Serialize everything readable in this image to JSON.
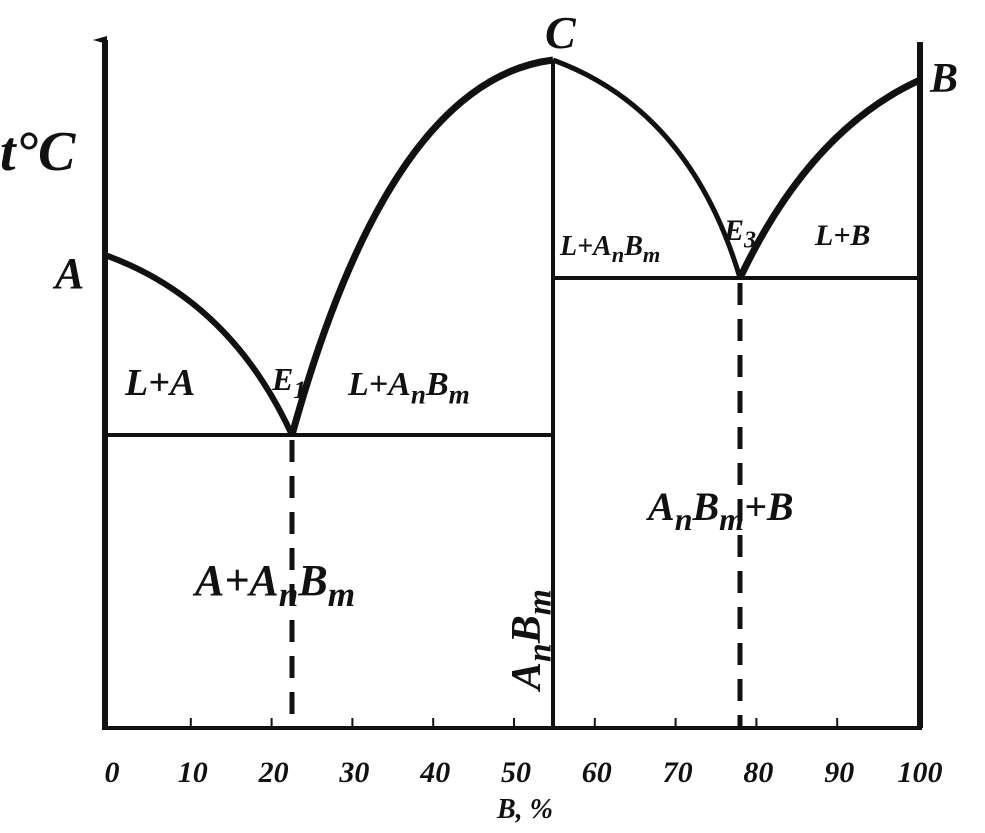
{
  "axis": {
    "y_label": "t°C",
    "x_label": "B, %",
    "x_ticks": [
      "0",
      "10",
      "20",
      "30",
      "40",
      "50",
      "60",
      "70",
      "80",
      "90",
      "100"
    ]
  },
  "points": [
    {
      "parts": [
        {
          "t": "A"
        }
      ]
    },
    {
      "parts": [
        {
          "t": "C"
        }
      ]
    },
    {
      "parts": [
        {
          "t": "B"
        }
      ]
    },
    {
      "parts": [
        {
          "t": "E"
        },
        {
          "t": "1",
          "sub": true
        }
      ]
    },
    {
      "parts": [
        {
          "t": "E"
        },
        {
          "t": "3",
          "sub": true
        }
      ]
    }
  ],
  "regions": [
    {
      "parts": [
        {
          "t": "L+A"
        }
      ]
    },
    {
      "parts": [
        {
          "t": "L+A"
        },
        {
          "t": "n",
          "sub": true
        },
        {
          "t": "B"
        },
        {
          "t": "m",
          "sub": true
        }
      ]
    },
    {
      "parts": [
        {
          "t": "L+A"
        },
        {
          "t": "n",
          "sub": true
        },
        {
          "t": "B"
        },
        {
          "t": "m",
          "sub": true
        }
      ]
    },
    {
      "parts": [
        {
          "t": "L+B"
        }
      ]
    },
    {
      "parts": [
        {
          "t": "A+A"
        },
        {
          "t": "n",
          "sub": true
        },
        {
          "t": "B"
        },
        {
          "t": "m",
          "sub": true
        }
      ]
    },
    {
      "parts": [
        {
          "t": "A"
        },
        {
          "t": "n",
          "sub": true
        },
        {
          "t": "B"
        },
        {
          "t": "m",
          "sub": true
        }
      ]
    },
    {
      "parts": [
        {
          "t": "A"
        },
        {
          "t": "n",
          "sub": true
        },
        {
          "t": "B"
        },
        {
          "t": "m",
          "sub": true
        },
        {
          "t": "+B"
        }
      ]
    }
  ]
}
